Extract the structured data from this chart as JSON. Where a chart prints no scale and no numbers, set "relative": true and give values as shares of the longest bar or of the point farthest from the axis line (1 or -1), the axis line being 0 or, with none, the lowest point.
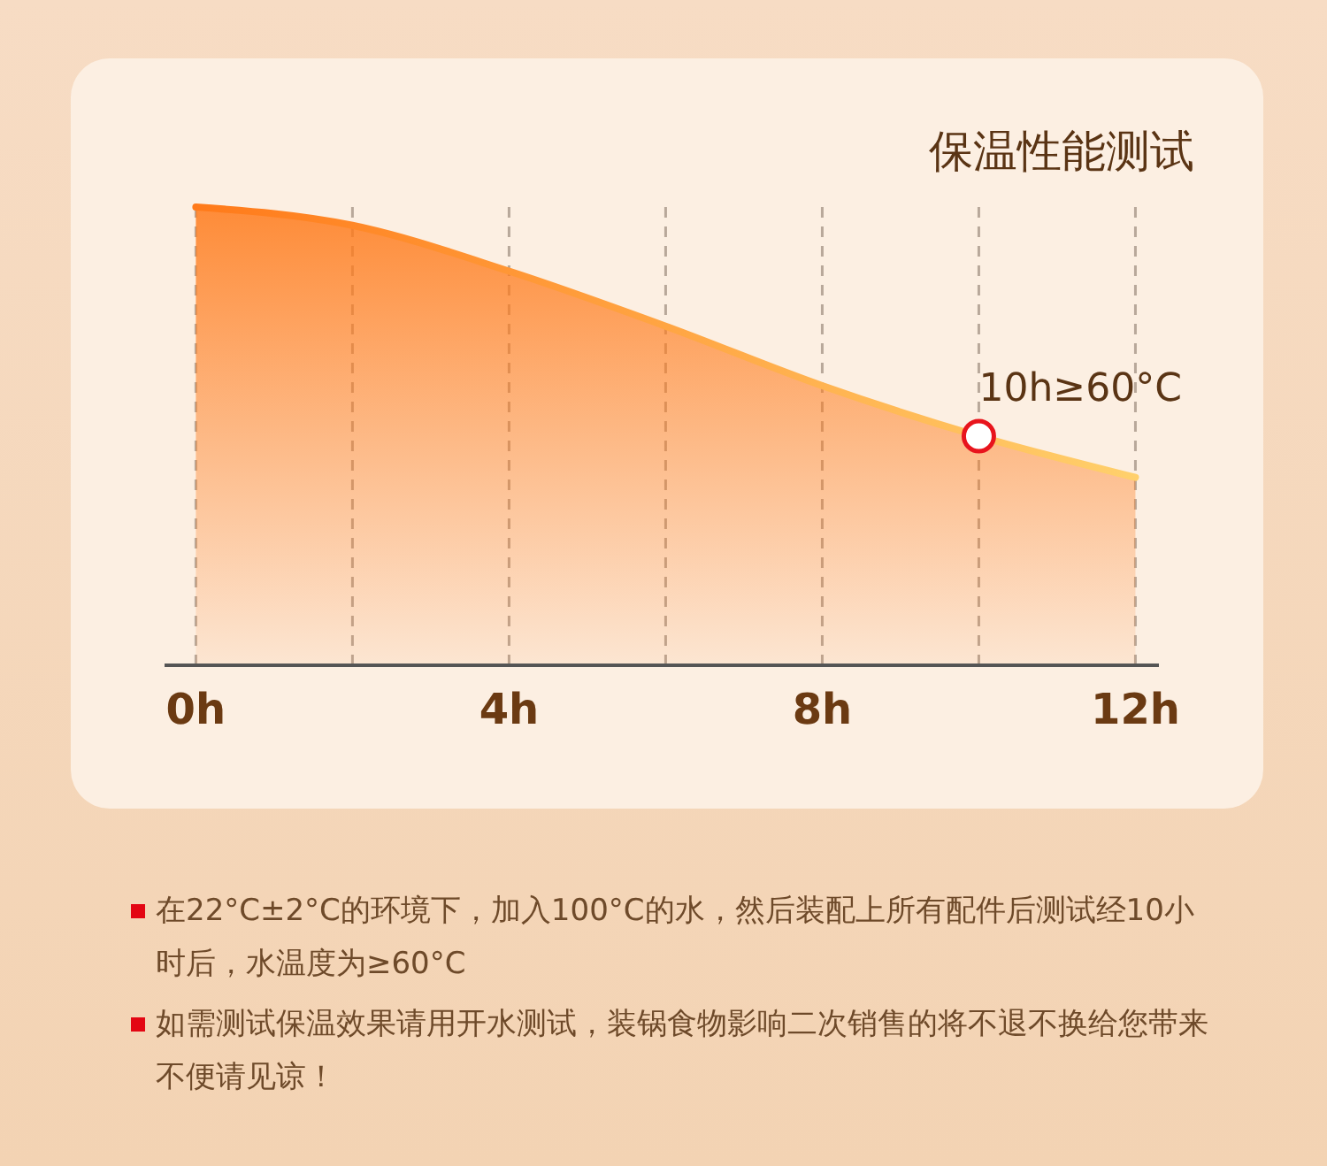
{
  "chart_data": {
    "type": "area",
    "title": "保温性能测试",
    "relative": true,
    "x": [
      0,
      2,
      4,
      6,
      8,
      10,
      12
    ],
    "xlim": [
      -0.4,
      12.3
    ],
    "xticks": [
      {
        "value": 0,
        "label": "0h"
      },
      {
        "value": 2,
        "label": null
      },
      {
        "value": 4,
        "label": "4h"
      },
      {
        "value": 6,
        "label": null
      },
      {
        "value": 8,
        "label": "8h"
      },
      {
        "value": 10,
        "label": null
      },
      {
        "value": 12,
        "label": "12h"
      }
    ],
    "grid": "x",
    "series": [
      {
        "color": "#ff7a1a",
        "values": [
          1,
          0.96,
          0.86,
          0.74,
          0.61,
          0.5,
          0.41
        ]
      },
      {
        "type": "scatter",
        "color": "#e8141c",
        "x": [
          10
        ],
        "values": [
          0.5
        ],
        "marker": "circle"
      }
    ],
    "annotations": [
      {
        "text": "10h≥60°C",
        "x": 10,
        "y": 0.5
      },
      "在22°C±2°C的环境下，加入100°C的水，然后装配上所有配件后测试经10小时后，水温度为≥60°C",
      "如需测试保温效果请用开水测试，装锅食物影响二次销售的将不退不换给您带来不便请见谅！"
    ]
  }
}
